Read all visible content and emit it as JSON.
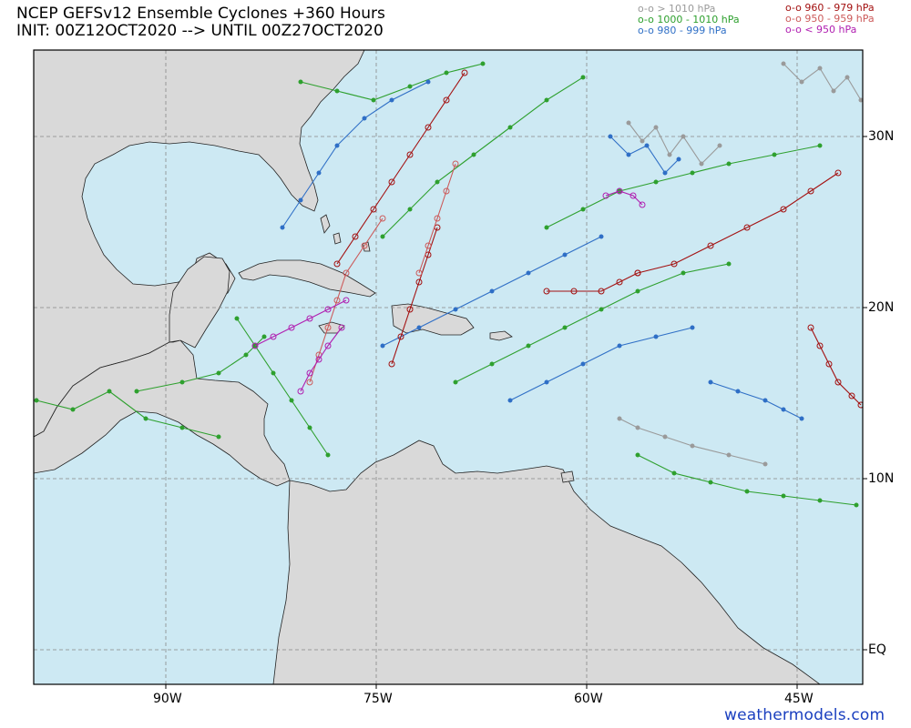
{
  "header": {
    "title_line1": "NCEP GEFSv12 Ensemble Cyclones +360 Hours",
    "title_line2": "INIT: 00Z12OCT2020 --> UNTIL 00Z27OCT2020"
  },
  "legend": {
    "left": [
      {
        "marker": "o-o",
        "label": "> 1010 hPa",
        "color": "#9a9a9a"
      },
      {
        "marker": "o-o",
        "label": "1000 - 1010 hPa",
        "color": "#2ea02e"
      },
      {
        "marker": "o-o",
        "label": "980 - 999 hPa",
        "color": "#2f6fc6"
      }
    ],
    "right": [
      {
        "marker": "o-o",
        "label": "960 - 979 hPa",
        "color": "#a31010"
      },
      {
        "marker": "o-o",
        "label": "950 - 959 hPa",
        "color": "#cc5a5a"
      },
      {
        "marker": "o-o",
        "label": "< 950 hPa",
        "color": "#b01eb0"
      }
    ]
  },
  "axes": {
    "lat_labels": [
      "30N",
      "20N",
      "10N",
      "EQ"
    ],
    "lon_labels": [
      "90W",
      "75W",
      "60W",
      "45W"
    ]
  },
  "map": {
    "ocean_color": "#cde9f3",
    "land_color": "#d9d9d9",
    "region": "Gulf of Mexico, Caribbean Sea and western Atlantic"
  },
  "credit": "weathermodels.com"
}
